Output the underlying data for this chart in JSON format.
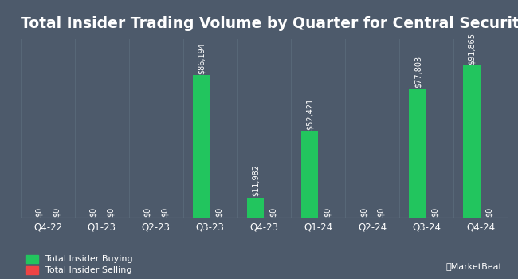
{
  "title": "Total Insider Trading Volume by Quarter for Central Securities",
  "categories": [
    "Q4-22",
    "Q1-23",
    "Q2-23",
    "Q3-23",
    "Q4-23",
    "Q1-24",
    "Q2-24",
    "Q3-24",
    "Q4-24"
  ],
  "buying": [
    0,
    0,
    0,
    86194,
    11982,
    52421,
    0,
    77803,
    91865
  ],
  "selling": [
    0,
    0,
    0,
    0,
    0,
    0,
    0,
    0,
    0
  ],
  "buying_color": "#22c55e",
  "selling_color": "#ef4444",
  "background_color": "#4d5a6b",
  "plot_bg_color": "#4d5a6b",
  "text_color": "#ffffff",
  "grid_color": "#5a6a7a",
  "bar_width": 0.32,
  "legend_buying": "Total Insider Buying",
  "legend_selling": "Total Insider Selling",
  "ylim": [
    0,
    108000
  ],
  "title_fontsize": 13.5,
  "label_fontsize": 7.0,
  "tick_fontsize": 8.5
}
